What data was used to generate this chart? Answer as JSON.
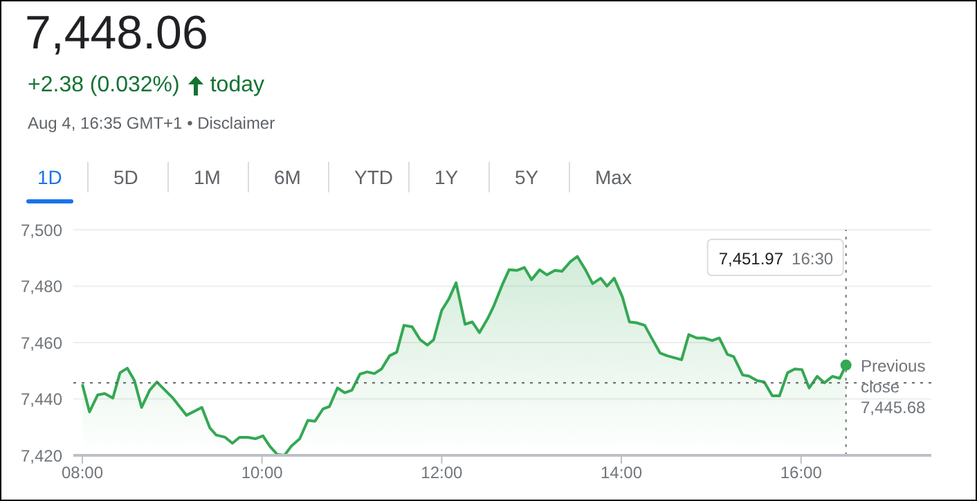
{
  "chart_data": {
    "type": "area",
    "title": "7,448.06",
    "subtitle": "+2.38 (0.032%) today",
    "annotations": [
      "Aug 4, 16:35 GMT+1 • Disclaimer",
      "1D",
      "5D",
      "1M",
      "6M",
      "YTD",
      "1Y",
      "5Y",
      "Max",
      "7,451.97 16:30"
    ],
    "x": [
      8.0,
      8.08,
      8.17,
      8.25,
      8.34,
      8.42,
      8.5,
      8.58,
      8.66,
      8.75,
      8.83,
      9.0,
      9.16,
      9.33,
      9.42,
      9.49,
      9.59,
      9.67,
      9.75,
      9.84,
      9.93,
      10.01,
      10.09,
      10.17,
      10.25,
      10.33,
      10.42,
      10.51,
      10.59,
      10.68,
      10.75,
      10.84,
      10.92,
      11.0,
      11.09,
      11.17,
      11.25,
      11.33,
      11.42,
      11.5,
      11.58,
      11.67,
      11.76,
      11.84,
      11.91,
      12.0,
      12.08,
      12.16,
      12.26,
      12.34,
      12.42,
      12.51,
      12.58,
      12.68,
      12.75,
      12.84,
      12.92,
      13.0,
      13.09,
      13.17,
      13.26,
      13.34,
      13.43,
      13.51,
      13.6,
      13.68,
      13.77,
      13.84,
      13.92,
      14.01,
      14.09,
      14.17,
      14.26,
      14.33,
      14.43,
      14.51,
      14.67,
      14.75,
      14.84,
      14.92,
      15.01,
      15.09,
      15.18,
      15.25,
      15.35,
      15.42,
      15.51,
      15.59,
      15.68,
      15.76,
      15.85,
      15.93,
      16.01,
      16.09,
      16.18,
      16.26,
      16.35,
      16.43,
      16.5
    ],
    "series": [
      {
        "color": "#34a853",
        "values": [
          7445.2,
          7435.4,
          7441.4,
          7441.9,
          7440.3,
          7449.3,
          7450.9,
          7446.5,
          7437,
          7443.1,
          7446,
          7440.6,
          7434.2,
          7437,
          7429.7,
          7427.2,
          7426.4,
          7424.3,
          7426.4,
          7426.4,
          7425.9,
          7426.9,
          7423.1,
          7420.3,
          7420,
          7423.4,
          7425.9,
          7432.4,
          7432.1,
          7436.5,
          7437.3,
          7443.9,
          7442.2,
          7443.1,
          7448.8,
          7449.6,
          7449,
          7450.6,
          7455.3,
          7456.6,
          7466.1,
          7465.6,
          7461,
          7459.1,
          7461,
          7471.4,
          7475.5,
          7481.2,
          7466.5,
          7467.3,
          7463.5,
          7468.4,
          7473,
          7480.9,
          7485.8,
          7485.6,
          7486.6,
          7482.3,
          7485.8,
          7484,
          7485.6,
          7485.3,
          7488.6,
          7490.5,
          7485.8,
          7480.9,
          7482.8,
          7480,
          7482.8,
          7476.3,
          7467.3,
          7467,
          7466.1,
          7462,
          7456.3,
          7455.3,
          7453.9,
          7462.8,
          7461.6,
          7461.6,
          7460.7,
          7461.6,
          7455.8,
          7455,
          7448.5,
          7448.1,
          7446.5,
          7446,
          7441.1,
          7441.1,
          7449.3,
          7450.6,
          7450.4,
          7443.9,
          7448,
          7445.7,
          7448,
          7447.3,
          7452
        ]
      }
    ],
    "xlim": [
      7.9,
      17.45
    ],
    "xticks": [
      {
        "value": 8,
        "label": "08:00"
      },
      {
        "value": 10,
        "label": "10:00"
      },
      {
        "value": 12,
        "label": "12:00"
      },
      {
        "value": 14,
        "label": "14:00"
      },
      {
        "value": 16,
        "label": "16:00"
      }
    ],
    "ylim": [
      7420,
      7500
    ],
    "yticks": [
      {
        "value": 7420,
        "label": "7,420"
      },
      {
        "value": 7440,
        "label": "7,440"
      },
      {
        "value": 7460,
        "label": "7,460"
      },
      {
        "value": 7480,
        "label": "7,480"
      },
      {
        "value": 7500,
        "label": "7,500"
      }
    ],
    "grid": "y",
    "marker": "none",
    "line_style": "solid",
    "ref_lines": [
      {
        "axis": "y",
        "value": 7445.68,
        "label": "Previous close 7,445.68",
        "color": "#5f6368",
        "line_style": "dotted"
      },
      {
        "axis": "x",
        "value": 16.5,
        "color": "#70757a",
        "line_style": "dotted"
      }
    ]
  }
}
